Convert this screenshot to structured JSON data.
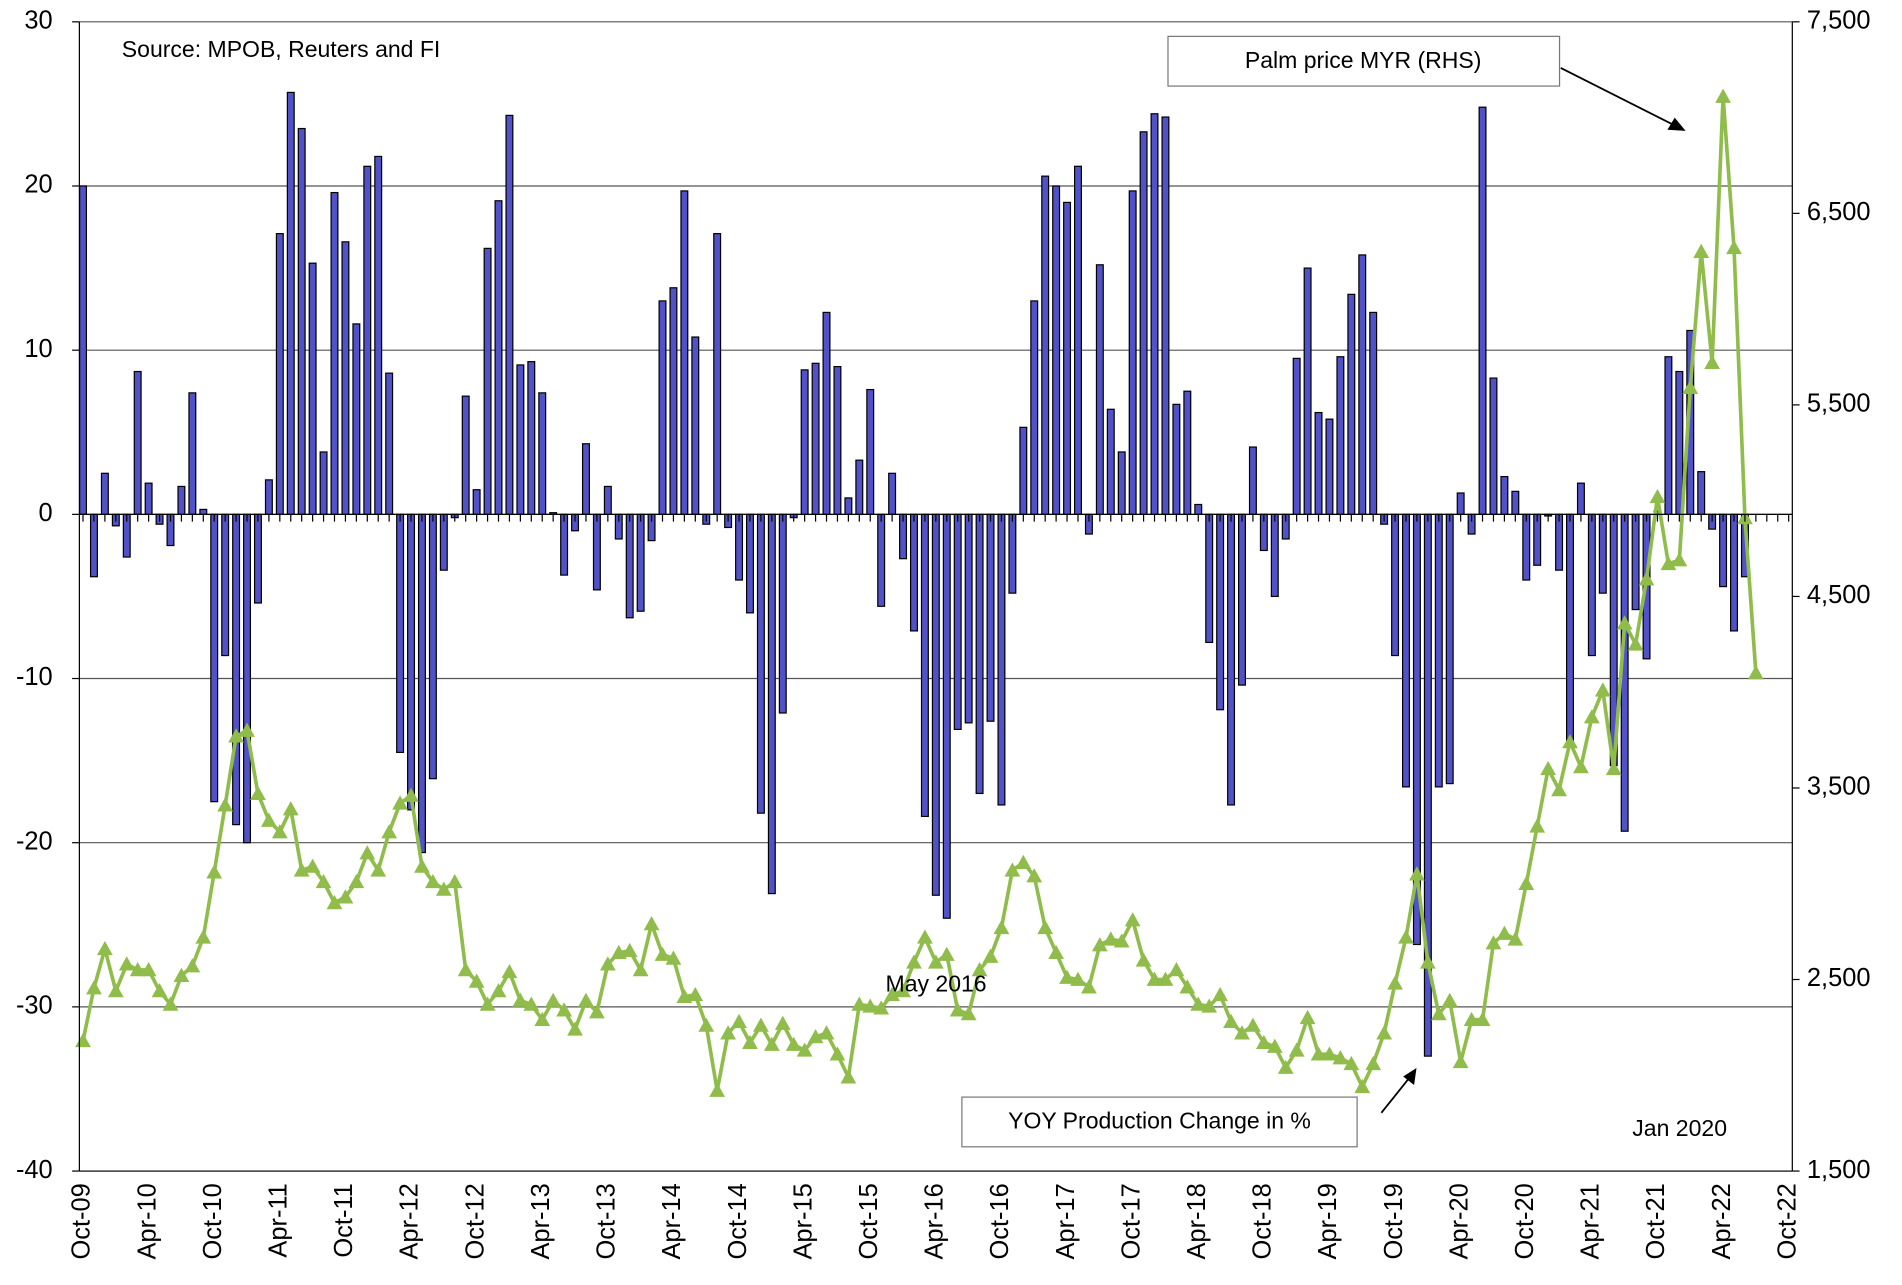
{
  "chart_data": {
    "type": "bar-line",
    "annotations": [
      "Source: MPOB, Reuters and FI",
      "May 2016",
      "Jan 2020"
    ],
    "categories": [
      "Oct-09",
      null,
      null,
      null,
      null,
      null,
      "Apr-10",
      null,
      null,
      null,
      null,
      null,
      "Oct-10",
      null,
      null,
      null,
      null,
      null,
      "Apr-11",
      null,
      null,
      null,
      null,
      null,
      "Oct-11",
      null,
      null,
      null,
      null,
      null,
      "Apr-12",
      null,
      null,
      null,
      null,
      null,
      "Oct-12",
      null,
      null,
      null,
      null,
      null,
      "Apr-13",
      null,
      null,
      null,
      null,
      null,
      "Oct-13",
      null,
      null,
      null,
      null,
      null,
      "Apr-14",
      null,
      null,
      null,
      null,
      null,
      "Oct-14",
      null,
      null,
      null,
      null,
      null,
      "Apr-15",
      null,
      null,
      null,
      null,
      null,
      "Oct-15",
      null,
      null,
      null,
      null,
      null,
      "Apr-16",
      null,
      null,
      null,
      null,
      null,
      "Oct-16",
      null,
      null,
      null,
      null,
      null,
      "Apr-17",
      null,
      null,
      null,
      null,
      null,
      "Oct-17",
      null,
      null,
      null,
      null,
      null,
      "Apr-18",
      null,
      null,
      null,
      null,
      null,
      "Oct-18",
      null,
      null,
      null,
      null,
      null,
      "Apr-19",
      null,
      null,
      null,
      null,
      null,
      "Oct-19",
      null,
      null,
      null,
      null,
      null,
      "Apr-20",
      null,
      null,
      null,
      null,
      null,
      "Oct-20",
      null,
      null,
      null,
      null,
      null,
      "Apr-21",
      null,
      null,
      null,
      null,
      null,
      "Oct-21",
      null,
      null,
      null,
      null,
      null,
      "Apr-22",
      null,
      null,
      null,
      null,
      null,
      "Oct-22"
    ],
    "series": [
      {
        "name": "YOY Production Change in %",
        "type": "bar",
        "color": "#5252c8",
        "values": [
          20,
          -3.8,
          2.5,
          -0.7,
          -2.6,
          8.7,
          1.9,
          -0.6,
          -1.9,
          1.7,
          7.4,
          0.3,
          -17.5,
          -8.6,
          -18.9,
          -20,
          -5.4,
          2.1,
          17.1,
          25.7,
          23.5,
          15.3,
          3.8,
          19.6,
          16.6,
          11.6,
          21.2,
          21.8,
          8.6,
          -14.5,
          -18,
          -20.6,
          -16.1,
          -3.4,
          -0.2,
          7.2,
          1.5,
          16.2,
          19.1,
          24.3,
          9.1,
          9.3,
          7.4,
          0.1,
          -3.7,
          -1,
          4.3,
          -4.6,
          1.7,
          -1.5,
          -6.3,
          -5.9,
          -1.6,
          13,
          13.8,
          19.7,
          10.8,
          -0.6,
          17.1,
          -0.8,
          -4,
          -6,
          -18.2,
          -23.1,
          -12.1,
          -0.2,
          8.8,
          9.2,
          12.3,
          9,
          1,
          3.3,
          7.6,
          -5.6,
          2.5,
          -2.7,
          -7.1,
          -18.4,
          -23.2,
          -24.6,
          -13.1,
          -12.7,
          -17,
          -12.6,
          -17.7,
          -4.8,
          5.3,
          13,
          20.6,
          20,
          19,
          21.2,
          -1.2,
          15.2,
          6.4,
          3.8,
          19.7,
          23.3,
          24.4,
          24.2,
          6.7,
          7.5,
          0.6,
          -7.8,
          -11.9,
          -17.7,
          -10.4,
          4.1,
          -2.2,
          -5,
          -1.5,
          9.5,
          15,
          6.2,
          5.8,
          9.6,
          13.4,
          15.8,
          12.3,
          -0.6,
          -8.6,
          -16.6,
          -26.2,
          -33,
          -16.6,
          -16.4,
          1.3,
          -1.2,
          24.8,
          8.3,
          2.3,
          1.4,
          -4,
          -3.1,
          -0.1,
          -3.4,
          -14,
          1.9,
          -8.6,
          -4.8,
          -15.3,
          -19.3,
          -5.8,
          -8.8,
          0.2,
          9.6,
          8.7,
          11.2,
          2.6,
          -0.9,
          -4.4,
          -7.1,
          -3.8,
          null,
          null,
          null,
          null
        ]
      },
      {
        "name": "Palm price MYR (RHS)",
        "type": "line",
        "axis": "y2",
        "color": "#8fbc4a",
        "values": [
          2180,
          2455,
          2660,
          2440,
          2580,
          2550,
          2550,
          2440,
          2370,
          2520,
          2570,
          2720,
          3060,
          3410,
          3770,
          3800,
          3470,
          3330,
          3270,
          3390,
          3070,
          3090,
          3010,
          2900,
          2930,
          3010,
          3160,
          3070,
          3270,
          3420,
          3460,
          3090,
          3010,
          2970,
          3010,
          2550,
          2490,
          2370,
          2440,
          2540,
          2390,
          2370,
          2290,
          2390,
          2340,
          2240,
          2390,
          2330,
          2580,
          2640,
          2650,
          2550,
          2790,
          2630,
          2610,
          2410,
          2420,
          2260,
          1920,
          2220,
          2280,
          2170,
          2260,
          2160,
          2270,
          2160,
          2130,
          2200,
          2220,
          2110,
          1990,
          2370,
          2360,
          2350,
          2420,
          2440,
          2590,
          2720,
          2590,
          2630,
          2340,
          2320,
          2550,
          2620,
          2770,
          3070,
          3110,
          3040,
          2770,
          2640,
          2510,
          2500,
          2460,
          2680,
          2710,
          2700,
          2810,
          2600,
          2500,
          2500,
          2550,
          2460,
          2370,
          2360,
          2420,
          2280,
          2220,
          2260,
          2170,
          2150,
          2040,
          2130,
          2300,
          2110,
          2110,
          2090,
          2060,
          1940,
          2060,
          2220,
          2480,
          2720,
          3050,
          2590,
          2320,
          2390,
          2070,
          2290,
          2290,
          2690,
          2740,
          2710,
          3000,
          3300,
          3600,
          3490,
          3740,
          3610,
          3870,
          4010,
          3600,
          4360,
          4250,
          4590,
          5020,
          4670,
          4690,
          5590,
          6300,
          5720,
          7110,
          6320,
          4910,
          4100,
          null,
          null,
          null
        ]
      }
    ],
    "ylim": [
      -40,
      30
    ],
    "yticks": [
      30,
      20,
      10,
      0,
      -10,
      -20,
      -30,
      -40
    ],
    "y2lim": [
      1500,
      7500
    ],
    "y2ticks": [
      {
        "value": 7500,
        "label": "7,500"
      },
      {
        "value": 6500,
        "label": "6,500"
      },
      {
        "value": 5500,
        "label": "5,500"
      },
      {
        "value": 4500,
        "label": "4,500"
      },
      {
        "value": 3500,
        "label": "3,500"
      },
      {
        "value": 2500,
        "label": "2,500"
      },
      {
        "value": 1500,
        "label": "1,500"
      }
    ],
    "grid": true
  }
}
